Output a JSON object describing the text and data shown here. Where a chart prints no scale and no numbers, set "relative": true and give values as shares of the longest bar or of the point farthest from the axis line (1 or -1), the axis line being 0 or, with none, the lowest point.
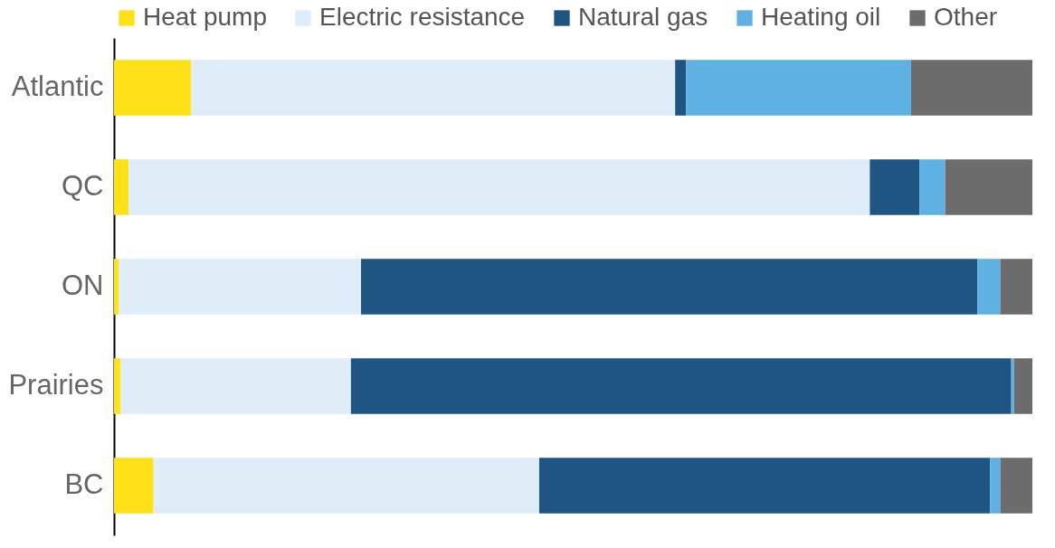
{
  "chart_data": {
    "type": "bar",
    "orientation": "horizontal",
    "stacked": true,
    "relative": true,
    "legend": "top",
    "categories": [
      "Atlantic",
      "QC",
      "ON",
      "Prairies",
      "BC"
    ],
    "series": [
      {
        "name": "Heat pump",
        "color": "#ffe11a",
        "values": [
          0.084,
          0.016,
          0.005,
          0.007,
          0.043
        ]
      },
      {
        "name": "Electric resistance",
        "color": "#deedf7",
        "values": [
          0.527,
          0.807,
          0.264,
          0.251,
          0.42
        ]
      },
      {
        "name": "Natural gas",
        "color": "#1f5582",
        "values": [
          0.012,
          0.054,
          0.671,
          0.719,
          0.491
        ]
      },
      {
        "name": "Heating oil",
        "color": "#5fb1e3",
        "values": [
          0.245,
          0.028,
          0.025,
          0.003,
          0.011
        ]
      },
      {
        "name": "Other",
        "color": "#6c6c6c",
        "values": [
          0.132,
          0.095,
          0.035,
          0.02,
          0.035
        ]
      }
    ]
  }
}
